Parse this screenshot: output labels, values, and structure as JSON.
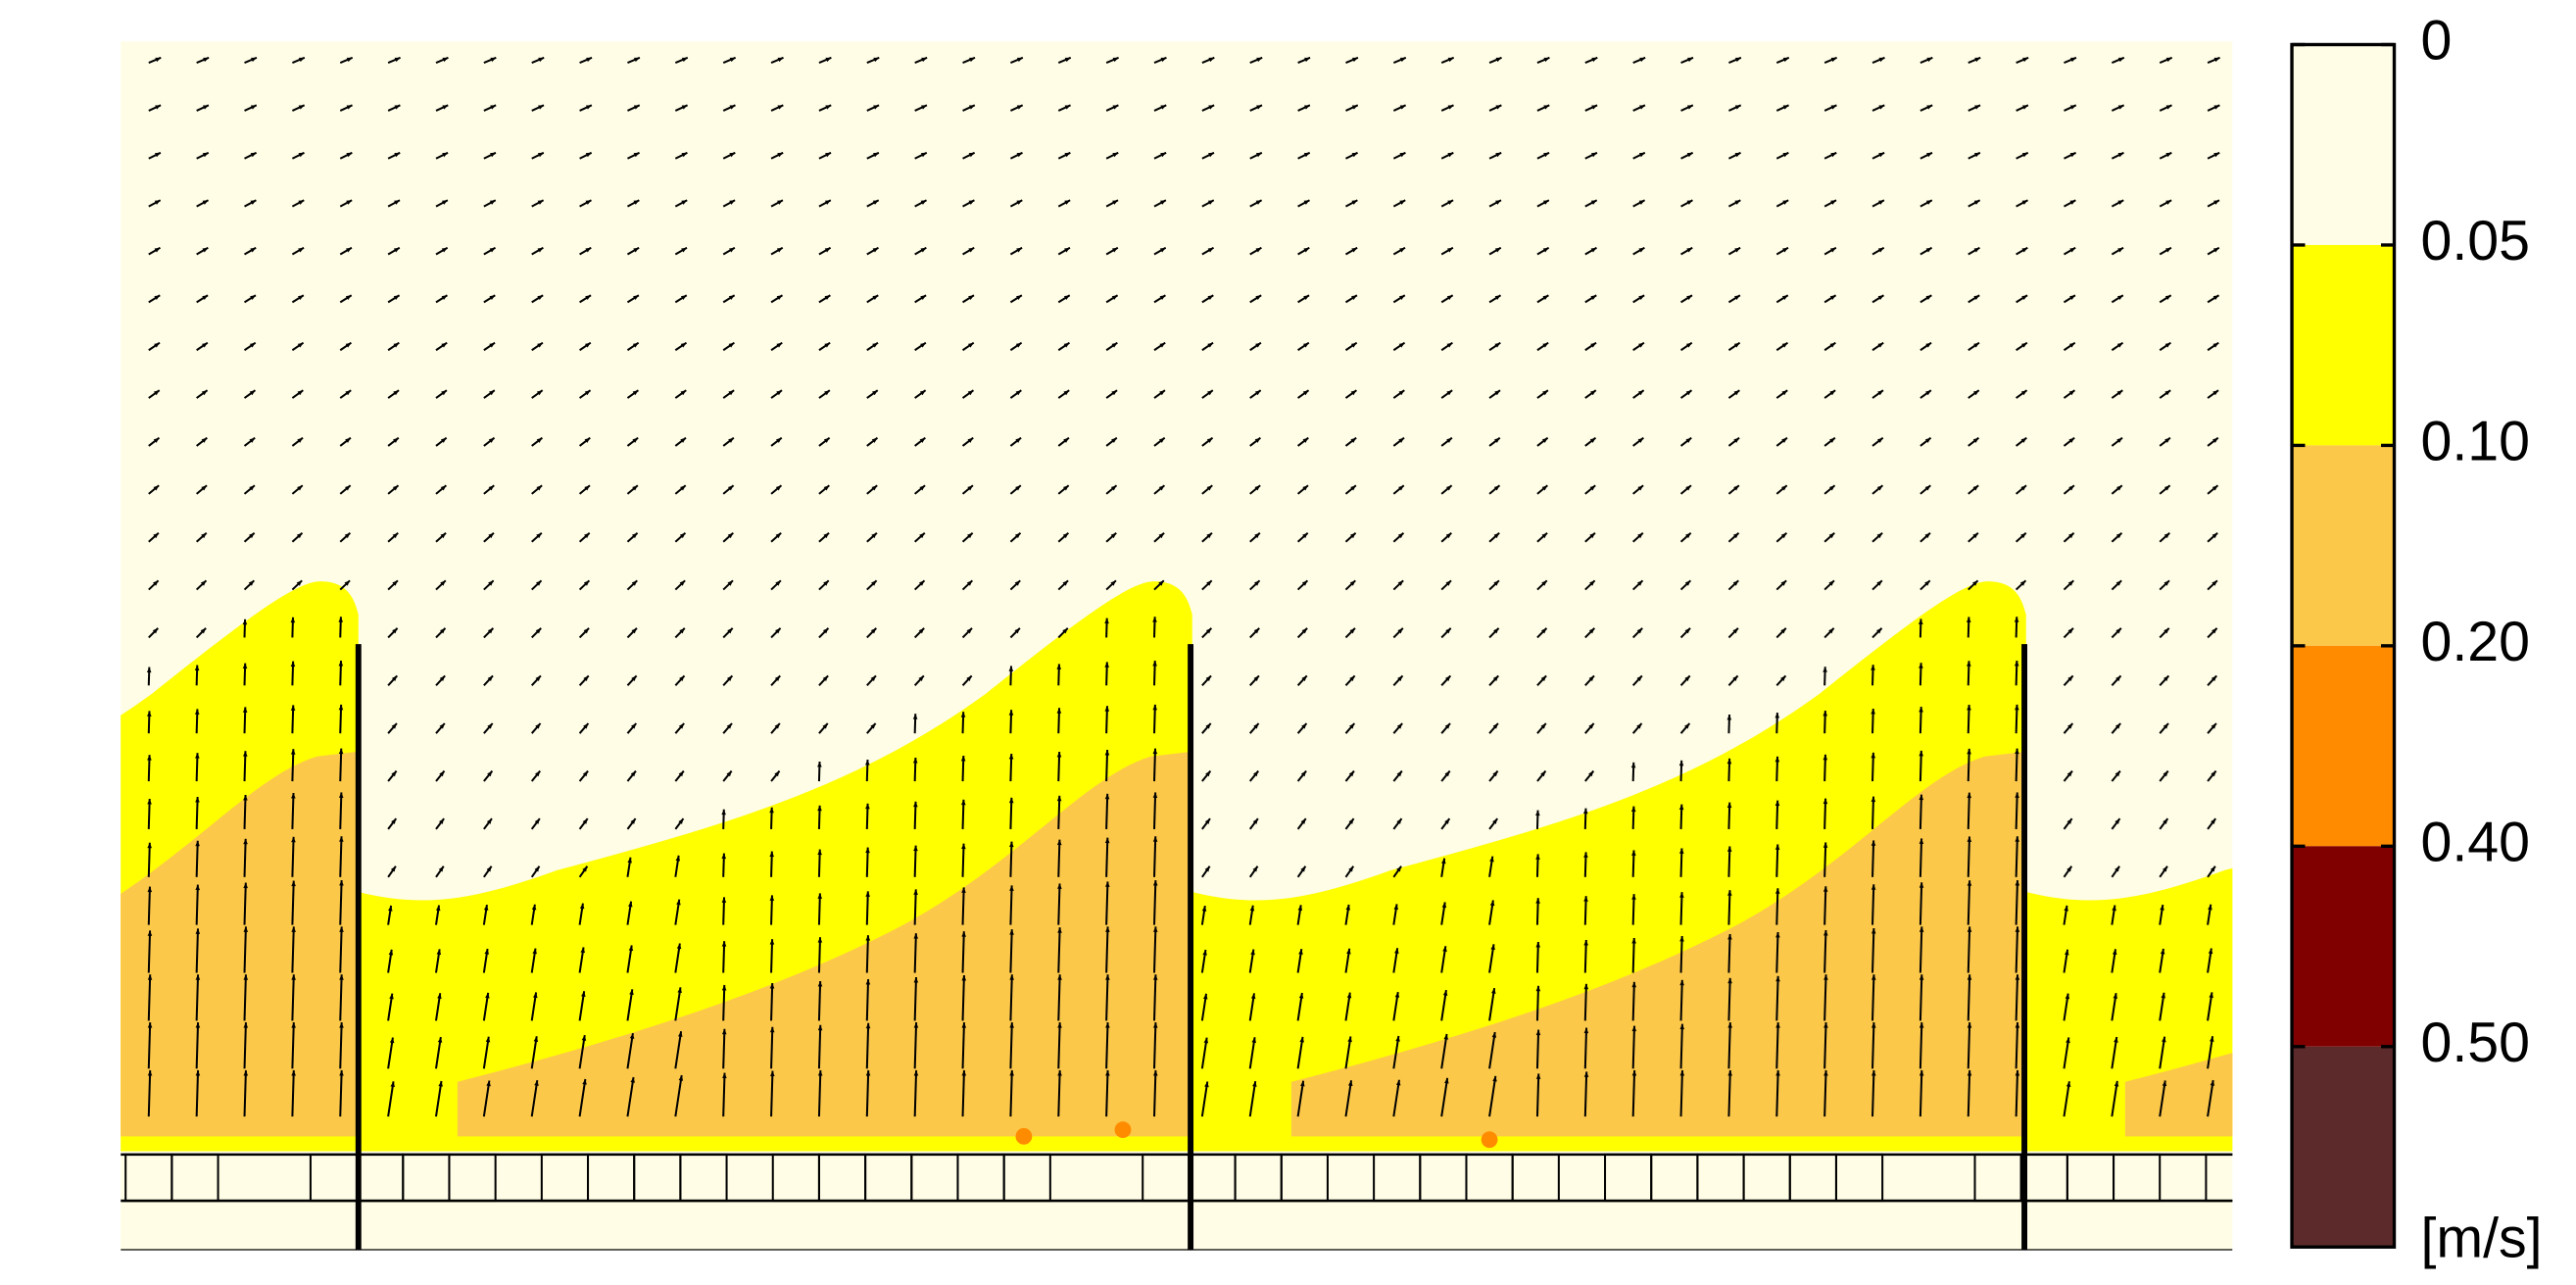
{
  "chart_data": {
    "type": "contour",
    "colorbar": {
      "ticks": [
        0,
        0.05,
        {
          "value": 0.1,
          "label": "0.10"
        },
        {
          "value": 0.2,
          "label": "0.20"
        },
        {
          "value": 0.4,
          "label": "0.40"
        },
        {
          "value": 0.5,
          "label": "0.50"
        }
      ],
      "colors": [
        "#fffde6",
        "#ffff00",
        "#fcc84a",
        "#ff8c00",
        "#800000",
        "#5c2a2a"
      ],
      "unit": "[m/s]"
    }
  }
}
